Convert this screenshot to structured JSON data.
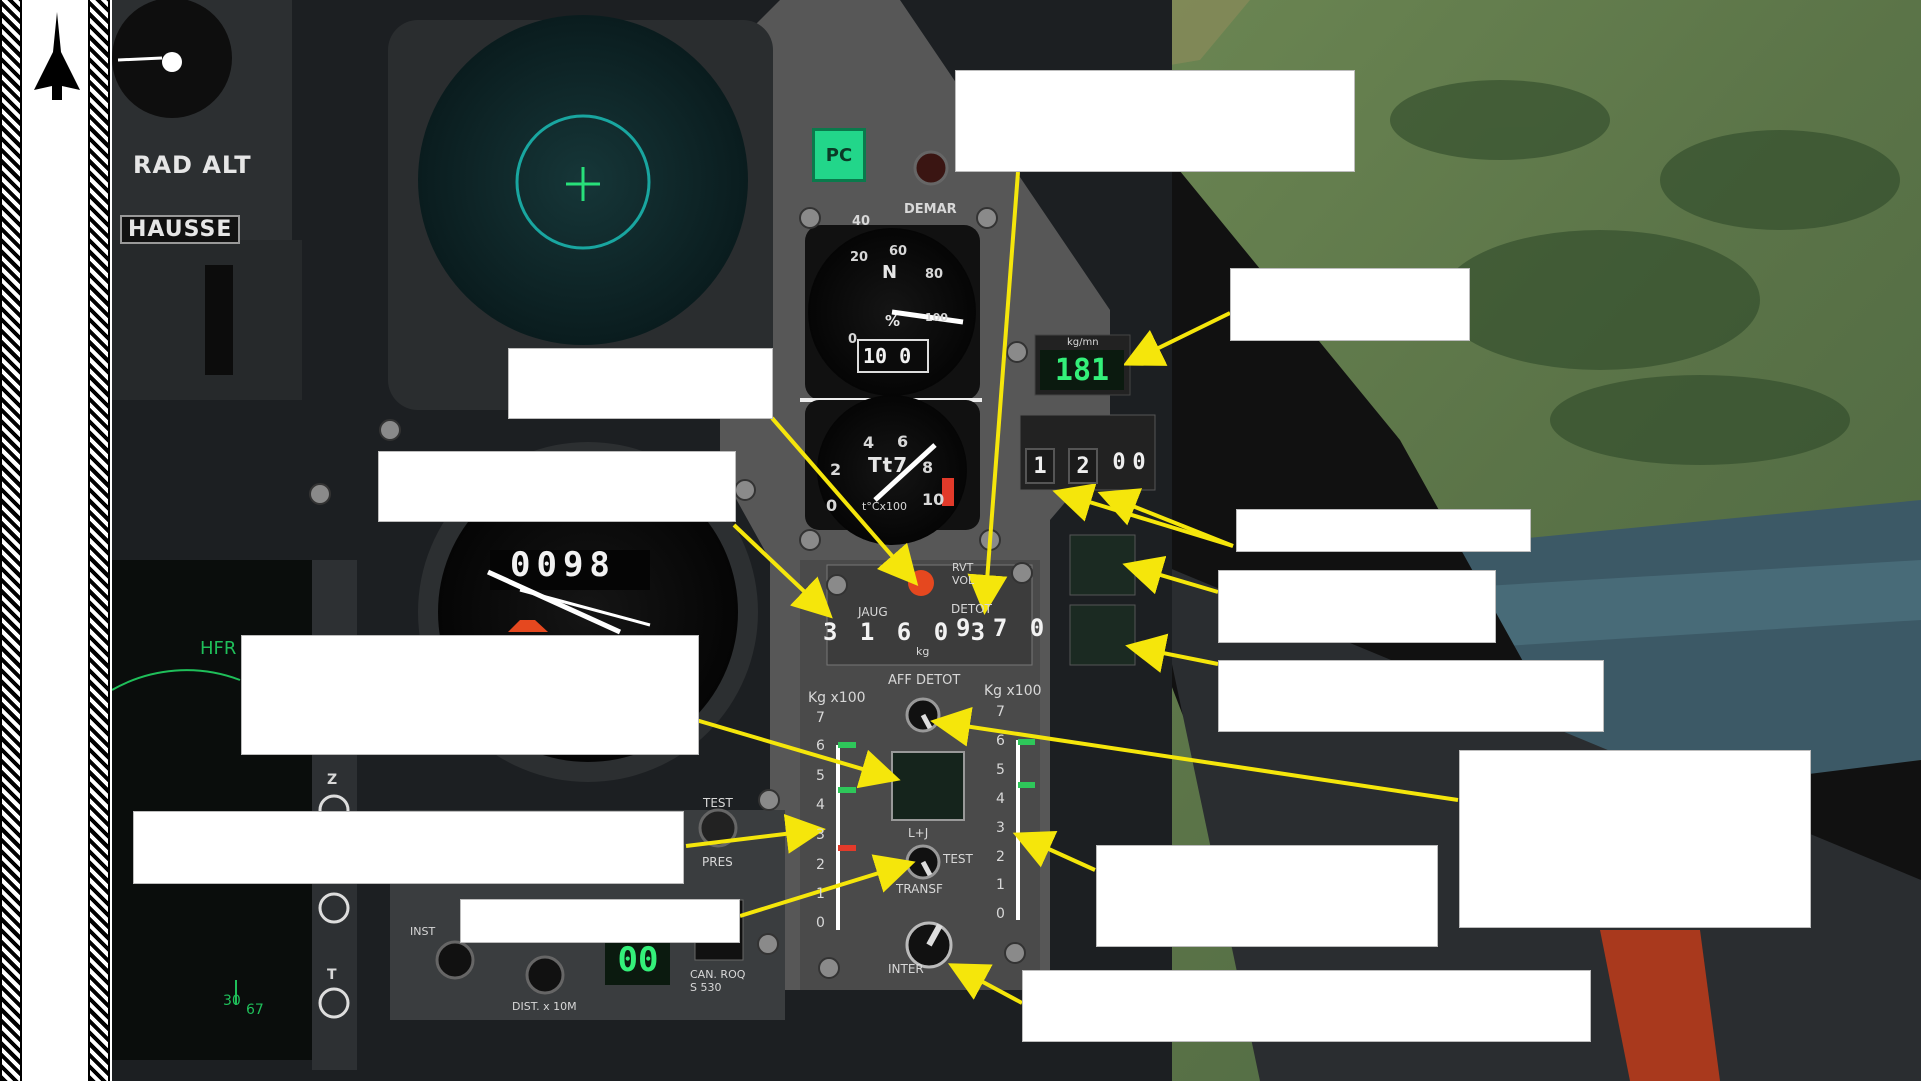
{
  "labels": {
    "rad_alt": "RAD ALT",
    "hausse": "HAUSSE",
    "pc": "PC",
    "demar": "DEMAR",
    "rpm_letter": "N",
    "rpm_unit": "%",
    "temp_label": "Tt7",
    "temp_unit": "t°Cx100",
    "fuel_flow_unit": "kg/mn",
    "fuel_flow_value": "181",
    "rvt_vol": "RVT VOL",
    "jaug": "JAUG",
    "detot": "DETOT",
    "kg": "kg",
    "jaug_value": "3 1 6 0 3",
    "detot_value": "9 7 0",
    "aff_detot": "AFF DETOT",
    "kg_x100_left": "Kg x100",
    "kg_x100_right": "Kg x100",
    "lj": "L+J",
    "test": "TEST",
    "transf": "TRANSF",
    "inter": "INTER",
    "hfr": "HFR",
    "test_pres_top": "TEST",
    "pres": "PRES",
    "inst": "INST",
    "dist": "DIST. x 10M",
    "can_roq": "CAN. ROQ",
    "s530": "S 530",
    "digital_00": "00",
    "odometer": "0098",
    "bingo_drums": [
      "1",
      "2",
      "0",
      "0"
    ],
    "z": "Z",
    "t": "T",
    "radar_30": "30",
    "radar_67": "67",
    "rpm_ticks": [
      "20",
      "40",
      "60",
      "80",
      "100",
      "0"
    ],
    "temp_ticks": [
      "2",
      "4",
      "6",
      "8",
      "10",
      "0"
    ],
    "scale_ticks": [
      "7",
      "6",
      "5",
      "4",
      "3",
      "2",
      "1",
      "0"
    ]
  },
  "colors": {
    "annotation_arrow": "#f5e60b",
    "pc_light": "#22d68a",
    "digital_green": "#34f07a"
  }
}
